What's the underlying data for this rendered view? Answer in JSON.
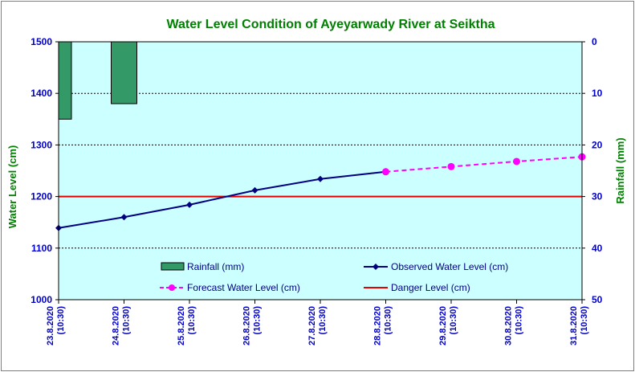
{
  "chart_data": {
    "type": "line",
    "title": "Water Level Condition of Ayeyarwady River at Seiktha",
    "ylabel": "Water Level (cm)",
    "y2label": "Rainfall (mm)",
    "ylim": [
      1000,
      1500
    ],
    "y_ticks": [
      1000,
      1100,
      1200,
      1300,
      1400,
      1500
    ],
    "y2lim": [
      0,
      50
    ],
    "y2_ticks": [
      0,
      10,
      20,
      30,
      40,
      50
    ],
    "y2_reversed": true,
    "categories": [
      [
        "23.8.2020",
        "(10:30)"
      ],
      [
        "24.8.2020",
        "(10:30)"
      ],
      [
        "25.8.2020",
        "(10:30)"
      ],
      [
        "26.8.2020",
        "(10:30)"
      ],
      [
        "27.8.2020",
        "(10:30)"
      ],
      [
        "28.8.2020",
        "(10:30)"
      ],
      [
        "29.8.2020",
        "(10:30)"
      ],
      [
        "30.8.2020",
        "(10:30)"
      ],
      [
        "31.8.2020",
        "(10:30)"
      ]
    ],
    "grid": true,
    "legend_position": "inside-bottom",
    "series": [
      {
        "name": "Rainfall (mm)",
        "type": "bar",
        "axis": "right",
        "color": "#339966",
        "values": [
          15,
          12,
          null,
          null,
          null,
          null,
          null,
          null,
          null
        ]
      },
      {
        "name": "Observed Water Level (cm)",
        "type": "line",
        "axis": "left",
        "color": "#000080",
        "marker": "diamond",
        "values": [
          1139,
          1160,
          1184,
          1212,
          1234,
          1248,
          null,
          null,
          null
        ]
      },
      {
        "name": "Forecast Water Level (cm)",
        "type": "line",
        "axis": "left",
        "color": "#ff00ff",
        "marker": "circle",
        "dashed": true,
        "values": [
          null,
          null,
          null,
          null,
          null,
          1248,
          1258,
          1268,
          1277
        ]
      },
      {
        "name": "Danger Level (cm)",
        "type": "hline",
        "axis": "left",
        "color": "#e60000",
        "value": 1200
      }
    ],
    "colors": {
      "plot_background": "#ccffff",
      "tick_labels": "#0000cc",
      "titles": "#008000"
    }
  }
}
